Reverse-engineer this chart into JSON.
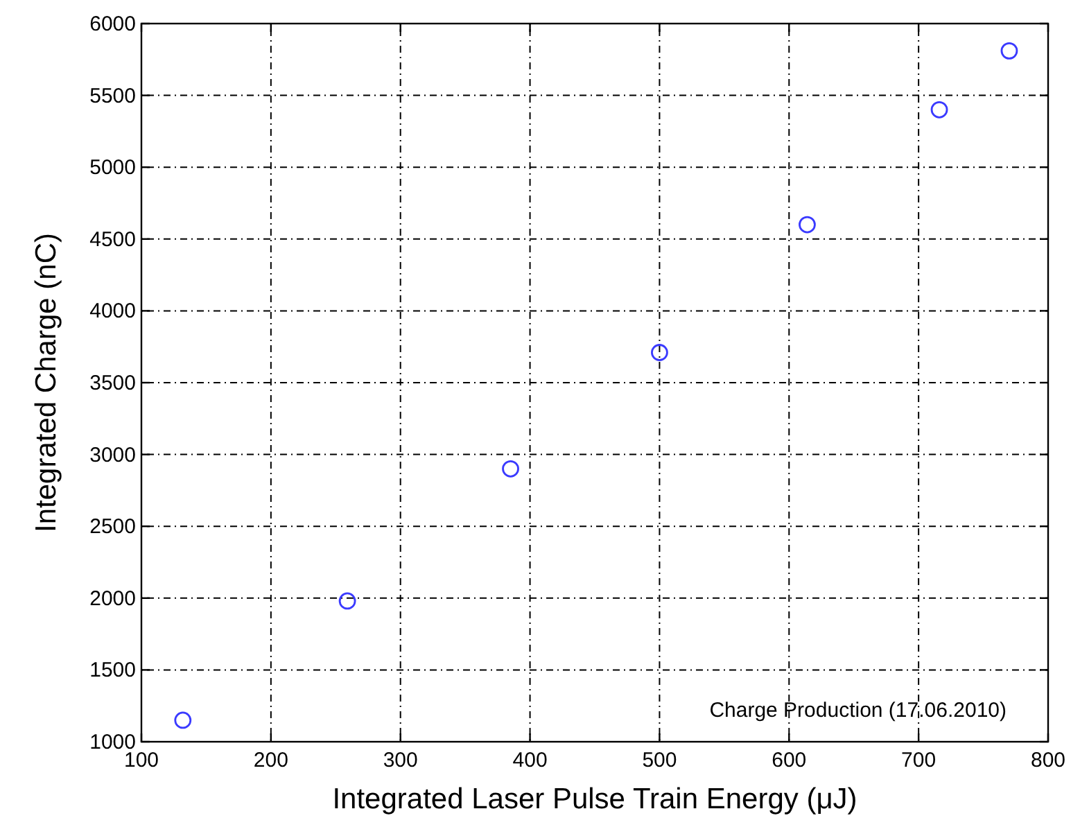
{
  "chart_data": {
    "type": "scatter",
    "xlabel": "Integrated Laser Pulse Train Energy (μJ)",
    "ylabel": "Integrated Charge (nC)",
    "x": [
      132,
      259,
      385,
      500,
      614,
      716,
      770
    ],
    "series": [
      {
        "color": "#3a3aff",
        "values": [
          1150,
          1980,
          2900,
          3710,
          4600,
          5400,
          5810
        ]
      }
    ],
    "xlim": [
      100,
      800
    ],
    "xticks": [
      100,
      200,
      300,
      400,
      500,
      600,
      700,
      800
    ],
    "ylim": [
      1000,
      6000
    ],
    "yticks": [
      1000,
      1500,
      2000,
      2500,
      3000,
      3500,
      4000,
      4500,
      5000,
      5500,
      6000
    ],
    "grid": true,
    "marker": "circle",
    "annotations": [
      "Charge Production (17.06.2010)"
    ]
  }
}
